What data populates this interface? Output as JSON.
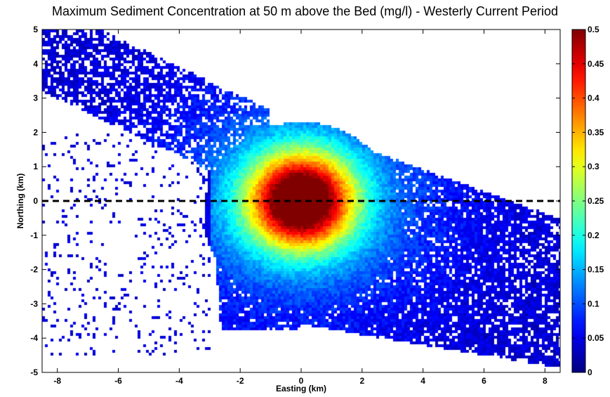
{
  "chart_data": {
    "type": "heatmap",
    "title": "Maximum Sediment Concentration at 50 m above the Bed (mg/l) - Westerly Current Period",
    "xlabel": "Easting (km)",
    "ylabel": "Northing (km)",
    "xlim": [
      -8.5,
      8.5
    ],
    "ylim": [
      -5,
      5
    ],
    "xticks": [
      -8,
      -6,
      -4,
      -2,
      0,
      2,
      4,
      6,
      8
    ],
    "yticks": [
      -5,
      -4,
      -3,
      -2,
      -1,
      0,
      1,
      2,
      3,
      4,
      5
    ],
    "colorbar": {
      "min": 0,
      "max": 0.5,
      "ticks": [
        0,
        0.05,
        0.1,
        0.15,
        0.2,
        0.25,
        0.3,
        0.35,
        0.4,
        0.45,
        0.5
      ],
      "colormap": "jet"
    },
    "plume": {
      "peak_value": 0.5,
      "peak_location": [
        0,
        0
      ],
      "description_extent_x": [
        -8.5,
        8.5
      ],
      "description_extent_y": [
        -5,
        5
      ]
    },
    "reference_line": {
      "y": 0,
      "style": "dashed",
      "color": "#000000"
    }
  }
}
